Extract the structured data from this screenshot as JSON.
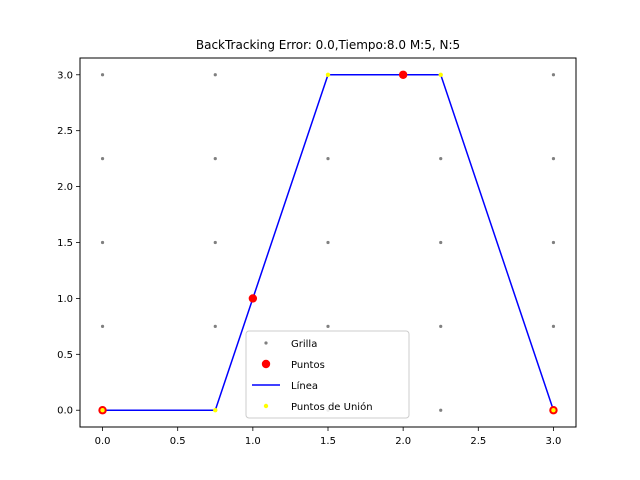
{
  "chart_data": {
    "type": "line",
    "title": "BackTracking Error: 0.0,Tiempo:8.0  M:5, N:5",
    "xlabel": "",
    "ylabel": "",
    "xlim": [
      -0.15,
      3.15
    ],
    "ylim": [
      -0.15,
      3.15
    ],
    "xticks": [
      0.0,
      0.5,
      1.0,
      1.5,
      2.0,
      2.5,
      3.0
    ],
    "xtick_labels": [
      "0.0",
      "0.5",
      "1.0",
      "1.5",
      "2.0",
      "2.5",
      "3.0"
    ],
    "yticks": [
      0.0,
      0.5,
      1.0,
      1.5,
      2.0,
      2.5,
      3.0
    ],
    "ytick_labels": [
      "0.0",
      "0.5",
      "1.0",
      "1.5",
      "2.0",
      "2.5",
      "3.0"
    ],
    "grid": false,
    "legend_position": "lower-center",
    "colors": {
      "grilla": "#808080",
      "puntos": "#ff0000",
      "linea": "#0000ff",
      "union": "#ffff00"
    },
    "series": [
      {
        "name": "Grilla",
        "kind": "scatter",
        "x": [
          0,
          0.75,
          1.5,
          2.25,
          3
        ],
        "y": [
          0,
          0.75,
          1.5,
          2.25,
          3
        ],
        "grid_product": true
      },
      {
        "name": "Puntos",
        "kind": "scatter",
        "x": [
          0,
          1,
          2,
          3
        ],
        "y": [
          0,
          1,
          3,
          0
        ]
      },
      {
        "name": "Línea",
        "kind": "line",
        "x": [
          0,
          0.75,
          1.5,
          2.25,
          3
        ],
        "y": [
          0,
          0,
          3,
          3,
          0
        ]
      },
      {
        "name": "Puntos de Unión",
        "kind": "scatter",
        "x": [
          0,
          0.75,
          1.5,
          2.25,
          3
        ],
        "y": [
          0,
          0,
          3,
          3,
          0
        ]
      }
    ]
  }
}
